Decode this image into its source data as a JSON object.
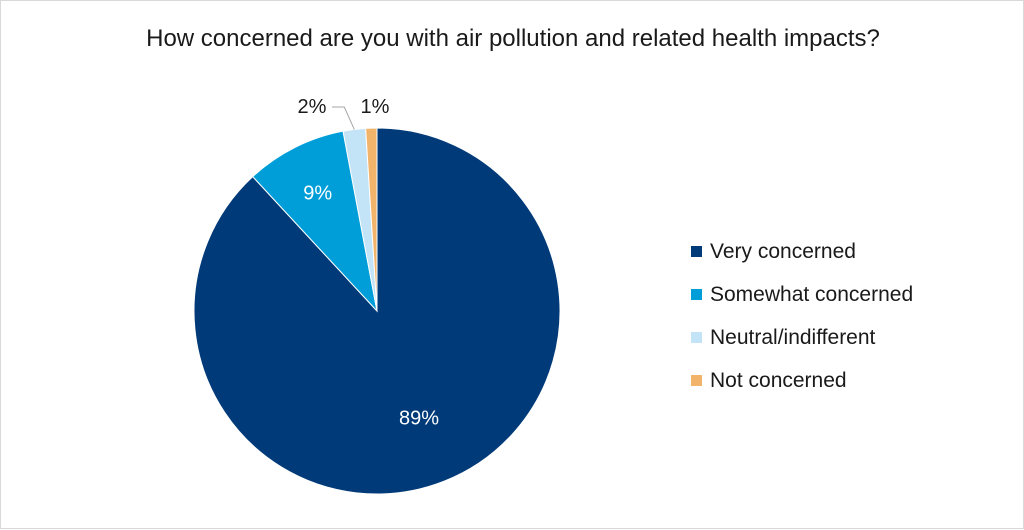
{
  "chart_data": {
    "type": "pie",
    "title": "How concerned are you with air pollution and related health impacts?",
    "categories": [
      "Very concerned",
      "Somewhat concerned",
      "Neutral/indifferent",
      "Not concerned"
    ],
    "values": [
      89,
      9,
      2,
      1
    ],
    "data_labels": [
      "89%",
      "9%",
      "2%",
      "1%"
    ],
    "colors": [
      "#003a78",
      "#009ed8",
      "#c3e3f7",
      "#f2b36b"
    ],
    "start_angle": "12 o'clock",
    "direction": "clockwise",
    "legend_position": "right"
  }
}
